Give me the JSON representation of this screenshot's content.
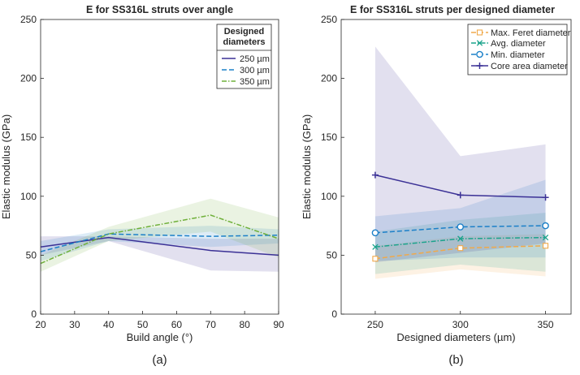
{
  "figure": {
    "panel_labels": [
      "(a)",
      "(b)"
    ]
  },
  "colors": {
    "purple": "#3b3196",
    "blue": "#1c80c8",
    "green": "#6fb03a",
    "teal": "#1aa38c",
    "orange": "#f0a94a",
    "axis": "#262626"
  },
  "chart_data": [
    {
      "type": "line",
      "title": "E for SS316L struts over angle",
      "xlabel": "Build angle (°)",
      "ylabel": "Elastic modulus (GPa)",
      "xlim": [
        20,
        90
      ],
      "ylim": [
        0,
        250
      ],
      "xticks": [
        20,
        30,
        40,
        50,
        60,
        70,
        80,
        90
      ],
      "yticks": [
        0,
        50,
        100,
        150,
        200,
        250
      ],
      "legend": {
        "title": [
          "Designed",
          "diameters"
        ],
        "location": "top-right"
      },
      "series": [
        {
          "name": "250 µm",
          "color": "purple",
          "style": "solid",
          "x": [
            20,
            40,
            70,
            90
          ],
          "y": [
            57,
            65,
            54,
            50
          ],
          "band_upper": [
            66,
            66,
            64,
            64
          ],
          "band_lower": [
            50,
            62,
            37,
            36
          ]
        },
        {
          "name": "300 µm",
          "color": "blue",
          "style": "dashed",
          "x": [
            20,
            40,
            70,
            90
          ],
          "y": [
            53,
            68,
            66,
            67
          ],
          "band_upper": [
            62,
            72,
            75,
            72
          ],
          "band_lower": [
            45,
            62,
            57,
            60
          ]
        },
        {
          "name": "350 µm",
          "color": "green",
          "style": "dashdot",
          "x": [
            20,
            40,
            70,
            90
          ],
          "y": [
            43,
            68,
            84,
            64
          ],
          "band_upper": [
            50,
            74,
            98,
            82
          ],
          "band_lower": [
            36,
            62,
            70,
            48
          ]
        }
      ]
    },
    {
      "type": "line",
      "title": "E for SS316L struts per designed diameter",
      "xlabel": "Designed diameters (µm)",
      "ylabel": "Elastic modulus (GPa)",
      "xlim": [
        230,
        365
      ],
      "ylim": [
        0,
        250
      ],
      "xticks": [
        250,
        300,
        350
      ],
      "yticks": [
        0,
        50,
        100,
        150,
        200,
        250
      ],
      "legend": {
        "location": "top-right"
      },
      "series": [
        {
          "name": "Max. Feret diameter",
          "color": "orange",
          "style": "dashed",
          "marker": "square",
          "x": [
            250,
            300,
            350
          ],
          "y": [
            47,
            56,
            58
          ],
          "band_upper": [
            58,
            66,
            68
          ],
          "band_lower": [
            30,
            38,
            32
          ]
        },
        {
          "name": "Avg. diameter",
          "color": "teal",
          "style": "dashdot",
          "marker": "x",
          "x": [
            250,
            300,
            350
          ],
          "y": [
            57,
            64,
            65
          ],
          "band_upper": [
            70,
            80,
            86
          ],
          "band_lower": [
            34,
            42,
            36
          ]
        },
        {
          "name": "Min. diameter",
          "color": "blue",
          "style": "dashed",
          "marker": "circle",
          "x": [
            250,
            300,
            350
          ],
          "y": [
            69,
            74,
            75
          ],
          "band_upper": [
            83,
            90,
            114
          ],
          "band_lower": [
            45,
            48,
            48
          ]
        },
        {
          "name": "Core area diameter",
          "color": "purple",
          "style": "solid",
          "marker": "plus",
          "x": [
            250,
            300,
            350
          ],
          "y": [
            118,
            101,
            99
          ],
          "band_upper": [
            227,
            134,
            144
          ],
          "band_lower": [
            44,
            52,
            60
          ]
        }
      ]
    }
  ]
}
